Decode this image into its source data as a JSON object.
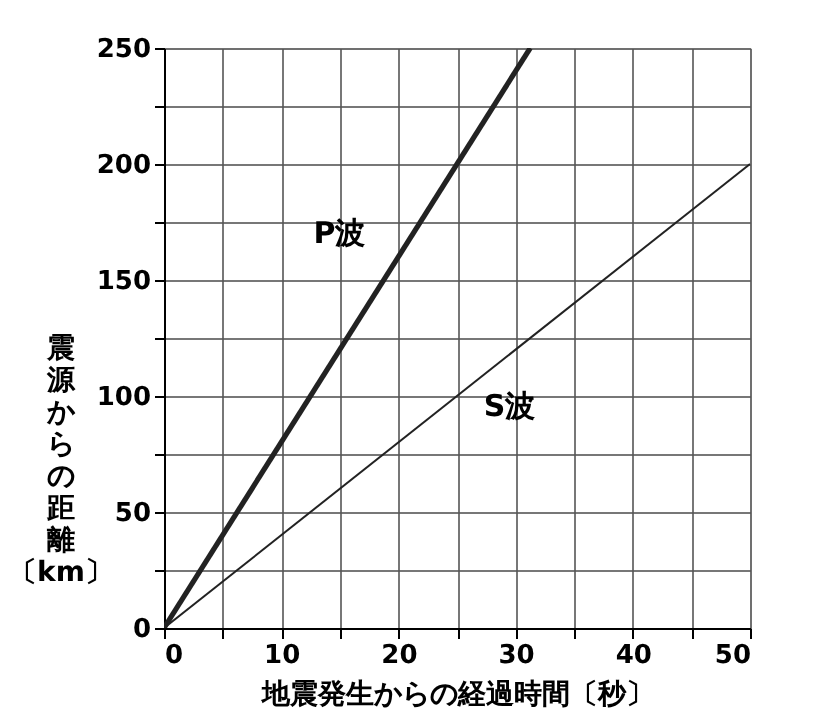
{
  "chart_data": {
    "type": "line",
    "xlabel": "地震発生からの経過時間〔秒〕",
    "ylabel": "震源からの距離〔km〕",
    "xlim": [
      0,
      50
    ],
    "ylim": [
      0,
      250
    ],
    "xticks": [
      0,
      {
        "value": 5,
        "label": null
      },
      10,
      {
        "value": 15,
        "label": null
      },
      20,
      {
        "value": 25,
        "label": null
      },
      30,
      {
        "value": 35,
        "label": null
      },
      40,
      {
        "value": 45,
        "label": null
      },
      50
    ],
    "yticks": [
      0,
      {
        "value": 25,
        "label": null
      },
      50,
      {
        "value": 75,
        "label": null
      },
      100,
      {
        "value": 125,
        "label": null
      },
      150,
      {
        "value": 175,
        "label": null
      },
      200,
      {
        "value": 225,
        "label": null
      },
      250
    ],
    "grid": true,
    "marker": "none",
    "line_style": "solid",
    "series": [
      {
        "color": "#222222",
        "x": [
          0,
          31.25
        ],
        "values": [
          0,
          250
        ]
      },
      {
        "color": "#222222",
        "x": [
          0,
          50
        ],
        "values": [
          0,
          200
        ]
      }
    ],
    "annotations": [
      "P波",
      "S波"
    ]
  }
}
